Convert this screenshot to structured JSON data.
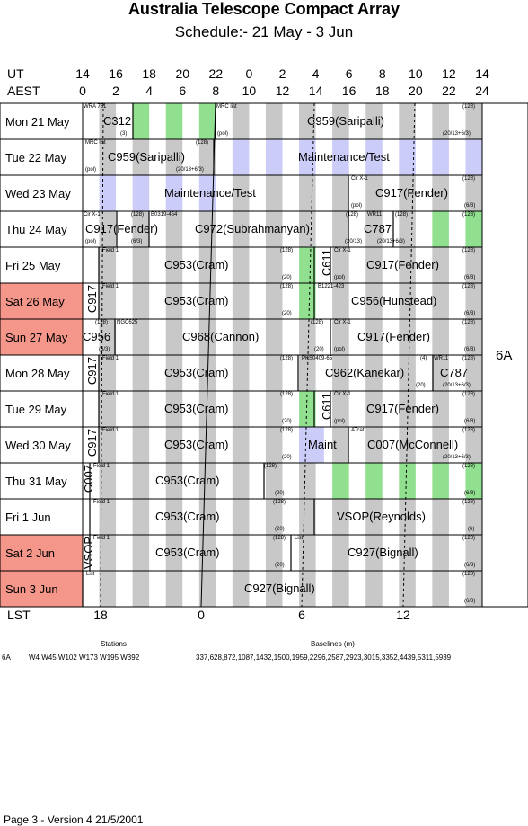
{
  "title": "Australia Telescope Compact Array",
  "subtitle": "Schedule:- 21 May - 3  Jun",
  "axis": {
    "ut_label": "UT",
    "aest_label": "AEST",
    "lst_label": "LST",
    "ut_ticks": [
      "14",
      "16",
      "18",
      "20",
      "22",
      "0",
      "2",
      "4",
      "6",
      "8",
      "10",
      "12",
      "14"
    ],
    "aest_ticks": [
      "0",
      "2",
      "4",
      "6",
      "8",
      "10",
      "12",
      "14",
      "16",
      "18",
      "20",
      "22",
      "24"
    ],
    "lst_ticks": [
      "18",
      "0",
      "6",
      "12"
    ]
  },
  "days": [
    {
      "label": "Mon  21 May",
      "weekend": false
    },
    {
      "label": "Tue  22 May",
      "weekend": false
    },
    {
      "label": "Wed 23 May",
      "weekend": false
    },
    {
      "label": "Thu  24 May",
      "weekend": false
    },
    {
      "label": "Fri    25 May",
      "weekend": false
    },
    {
      "label": "Sat   26 May",
      "weekend": true
    },
    {
      "label": "Sun  27 May",
      "weekend": true
    },
    {
      "label": "Mon 28 May",
      "weekend": false
    },
    {
      "label": "Tue   29 May",
      "weekend": false
    },
    {
      "label": "Wed 30 May",
      "weekend": false
    },
    {
      "label": "Thu  31 May",
      "weekend": false
    },
    {
      "label": "Fri     1  Jun",
      "weekend": false
    },
    {
      "label": "Sat    2  Jun",
      "weekend": true
    },
    {
      "label": "Sun   3  Jun",
      "weekend": true
    }
  ],
  "config": "6A",
  "projects": [
    {
      "row": 0,
      "text": "C312",
      "x": 115
    },
    {
      "row": 0,
      "text": "C959(Saripalli)",
      "x": 342
    },
    {
      "row": 1,
      "text": "C959(Saripalli)",
      "x": 120
    },
    {
      "row": 1,
      "text": "Maintenance/Test",
      "x": 332
    },
    {
      "row": 2,
      "text": "Maintenance/Test",
      "x": 183
    },
    {
      "row": 2,
      "text": "C917(Fender)",
      "x": 418
    },
    {
      "row": 3,
      "text": "C917(Fender)",
      "x": 95
    },
    {
      "row": 3,
      "text": "C972(Subrahmanyan)",
      "x": 217
    },
    {
      "row": 3,
      "text": "C787",
      "x": 405
    },
    {
      "row": 4,
      "text": "C953(Cram)",
      "x": 183
    },
    {
      "row": 4,
      "text": "C917(Fender)",
      "x": 408
    },
    {
      "row": 5,
      "text": "C953(Cram)",
      "x": 183
    },
    {
      "row": 5,
      "text": "C956(Hunstead)",
      "x": 391
    },
    {
      "row": 6,
      "text": "C956",
      "x": 92
    },
    {
      "row": 6,
      "text": "C968(Cannon)",
      "x": 203
    },
    {
      "row": 6,
      "text": "C917(Fender)",
      "x": 398
    },
    {
      "row": 7,
      "text": "C953(Cram)",
      "x": 183
    },
    {
      "row": 7,
      "text": "C962(Kanekar)",
      "x": 362
    },
    {
      "row": 7,
      "text": "C787",
      "x": 490
    },
    {
      "row": 8,
      "text": "C953(Cram)",
      "x": 183
    },
    {
      "row": 8,
      "text": "C917(Fender)",
      "x": 408
    },
    {
      "row": 9,
      "text": "C953(Cram)",
      "x": 183
    },
    {
      "row": 9,
      "text": "Maint",
      "x": 343
    },
    {
      "row": 9,
      "text": "C007(McConnell)",
      "x": 409
    },
    {
      "row": 10,
      "text": "C953(Cram)",
      "x": 173
    },
    {
      "row": 11,
      "text": "C953(Cram)",
      "x": 173
    },
    {
      "row": 11,
      "text": "VSOP(Reynolds)",
      "x": 375
    },
    {
      "row": 12,
      "text": "C953(Cram)",
      "x": 173
    },
    {
      "row": 12,
      "text": "C927(Bignall)",
      "x": 387
    },
    {
      "row": 13,
      "text": "C927(Bignall)",
      "x": 272
    }
  ],
  "vertical_projects": [
    {
      "row": 4,
      "text": "C611",
      "x": 356
    },
    {
      "row": 5,
      "text": "C917",
      "x": 95
    },
    {
      "row": 7,
      "text": "C917",
      "x": 95
    },
    {
      "row": 8,
      "text": "C611",
      "x": 356
    },
    {
      "row": 9,
      "text": "C917",
      "x": 95
    },
    {
      "row": 10,
      "text": "C007",
      "x": 91
    },
    {
      "row": 12,
      "text": "VSOP",
      "x": 91
    }
  ],
  "sources": [
    {
      "row": 0,
      "text": "WRA 751",
      "x": 93
    },
    {
      "row": 0,
      "text": "MRC list",
      "x": 241
    },
    {
      "row": 1,
      "text": "MRC list",
      "x": 95
    },
    {
      "row": 2,
      "text": "Cir X-1",
      "x": 391
    },
    {
      "row": 3,
      "text": "Cir X-1",
      "x": 93
    },
    {
      "row": 3,
      "text": "B0319-454",
      "x": 168
    },
    {
      "row": 3,
      "text": "WR11",
      "x": 409
    },
    {
      "row": 4,
      "text": "Field 1",
      "x": 114
    },
    {
      "row": 4,
      "text": "Cir X-1",
      "x": 372
    },
    {
      "row": 5,
      "text": "Field 1",
      "x": 114
    },
    {
      "row": 5,
      "text": "B1221-423",
      "x": 354
    },
    {
      "row": 6,
      "text": "NGC625",
      "x": 130
    },
    {
      "row": 6,
      "text": "Cir X-1",
      "x": 372
    },
    {
      "row": 7,
      "text": "Field 1",
      "x": 114
    },
    {
      "row": 7,
      "text": "PKS0409-65",
      "x": 336
    },
    {
      "row": 7,
      "text": "WR11",
      "x": 483
    },
    {
      "row": 8,
      "text": "Field 1",
      "x": 114
    },
    {
      "row": 8,
      "text": "Cir X-1",
      "x": 372
    },
    {
      "row": 9,
      "text": "Field 1",
      "x": 114
    },
    {
      "row": 9,
      "text": "ATcat",
      "x": 391
    },
    {
      "row": 10,
      "text": "Field 1",
      "x": 104
    },
    {
      "row": 11,
      "text": "Field 1",
      "x": 104
    },
    {
      "row": 12,
      "text": "Field 1",
      "x": 104
    },
    {
      "row": 12,
      "text": "List",
      "x": 328
    },
    {
      "row": 13,
      "text": "List",
      "x": 96
    }
  ],
  "notes_top": [
    {
      "row": 0,
      "text": "(128)",
      "x": 515
    },
    {
      "row": 1,
      "text": "(128)",
      "x": 218
    },
    {
      "row": 2,
      "text": "(128)",
      "x": 515
    },
    {
      "row": 3,
      "text": "(128)",
      "x": 146
    },
    {
      "row": 3,
      "text": "(128)",
      "x": 385
    },
    {
      "row": 3,
      "text": "(128)",
      "x": 440
    },
    {
      "row": 3,
      "text": "(128)",
      "x": 515
    },
    {
      "row": 4,
      "text": "(128)",
      "x": 312
    },
    {
      "row": 4,
      "text": "(128)",
      "x": 515
    },
    {
      "row": 5,
      "text": "(128)",
      "x": 312
    },
    {
      "row": 5,
      "text": "(128)",
      "x": 515
    },
    {
      "row": 6,
      "text": "(128)",
      "x": 106
    },
    {
      "row": 6,
      "text": "(128)",
      "x": 346
    },
    {
      "row": 6,
      "text": "(128)",
      "x": 515
    },
    {
      "row": 7,
      "text": "(128)",
      "x": 312
    },
    {
      "row": 7,
      "text": "(4)",
      "x": 468
    },
    {
      "row": 7,
      "text": "(128)",
      "x": 515
    },
    {
      "row": 8,
      "text": "(128)",
      "x": 312
    },
    {
      "row": 8,
      "text": "(128)",
      "x": 515
    },
    {
      "row": 9,
      "text": "(128)",
      "x": 312
    },
    {
      "row": 9,
      "text": "(128)",
      "x": 515
    },
    {
      "row": 10,
      "text": "(128)",
      "x": 294
    },
    {
      "row": 10,
      "text": "(128)",
      "x": 515
    },
    {
      "row": 11,
      "text": "(128)",
      "x": 304
    },
    {
      "row": 11,
      "text": "(128)",
      "x": 515
    },
    {
      "row": 12,
      "text": "(128)",
      "x": 304
    },
    {
      "row": 12,
      "text": "(128)",
      "x": 515
    },
    {
      "row": 13,
      "text": "(128)",
      "x": 515
    }
  ],
  "notes_bottom": [
    {
      "row": 0,
      "text": "(3)",
      "x": 134
    },
    {
      "row": 0,
      "text": "(pol)",
      "x": 242
    },
    {
      "row": 0,
      "text": "(20/13+6/3)",
      "x": 493
    },
    {
      "row": 1,
      "text": "(pol)",
      "x": 95
    },
    {
      "row": 1,
      "text": "(20/13+6/3)",
      "x": 196
    },
    {
      "row": 2,
      "text": "(pol)",
      "x": 391
    },
    {
      "row": 2,
      "text": "(6/3)",
      "x": 517
    },
    {
      "row": 3,
      "text": "(pol)",
      "x": 95
    },
    {
      "row": 3,
      "text": "(6/3)",
      "x": 146
    },
    {
      "row": 3,
      "text": "(20/13)",
      "x": 384
    },
    {
      "row": 3,
      "text": "(20/13+6/3)",
      "x": 420
    },
    {
      "row": 4,
      "text": "(20)",
      "x": 314
    },
    {
      "row": 4,
      "text": "(pol)",
      "x": 372
    },
    {
      "row": 4,
      "text": "(6/3)",
      "x": 517
    },
    {
      "row": 5,
      "text": "(20)",
      "x": 314
    },
    {
      "row": 5,
      "text": "(6/3)",
      "x": 517
    },
    {
      "row": 6,
      "text": "(6/3)",
      "x": 110
    },
    {
      "row": 6,
      "text": "(20)",
      "x": 350
    },
    {
      "row": 6,
      "text": "(pol)",
      "x": 372
    },
    {
      "row": 6,
      "text": "(6/3)",
      "x": 517
    },
    {
      "row": 7,
      "text": "(20)",
      "x": 463
    },
    {
      "row": 7,
      "text": "(20/13+6/3)",
      "x": 493
    },
    {
      "row": 8,
      "text": "(20)",
      "x": 314
    },
    {
      "row": 8,
      "text": "(pol)",
      "x": 372
    },
    {
      "row": 8,
      "text": "(6/3)",
      "x": 517
    },
    {
      "row": 9,
      "text": "(20)",
      "x": 314
    },
    {
      "row": 9,
      "text": "(20/13+6/3)",
      "x": 493
    },
    {
      "row": 10,
      "text": "(20)",
      "x": 306
    },
    {
      "row": 10,
      "text": "(6/3)",
      "x": 517
    },
    {
      "row": 11,
      "text": "(20)",
      "x": 306
    },
    {
      "row": 11,
      "text": "(6)",
      "x": 521
    },
    {
      "row": 12,
      "text": "(20)",
      "x": 306
    },
    {
      "row": 12,
      "text": "(6/3)",
      "x": 517
    },
    {
      "row": 13,
      "text": "(6/3)",
      "x": 517
    }
  ],
  "footer": {
    "stations_heading": "Stations",
    "baselines_heading": "Baselines (m)",
    "config": "6A",
    "stations": "W4  W45  W102  W173  W195  W392",
    "baselines": "337,628,872,1087,1432,1500,1959,2296,2587,2923,3015,3352,4439,5311,5939",
    "page": "Page 3 - Version 4  21/5/2001"
  },
  "colors": {
    "weekend": "#f4968a",
    "grey_stripe": "#c8c8c8",
    "lavender_stripe": "#ccccf8",
    "green_stripe": "#90e090"
  }
}
